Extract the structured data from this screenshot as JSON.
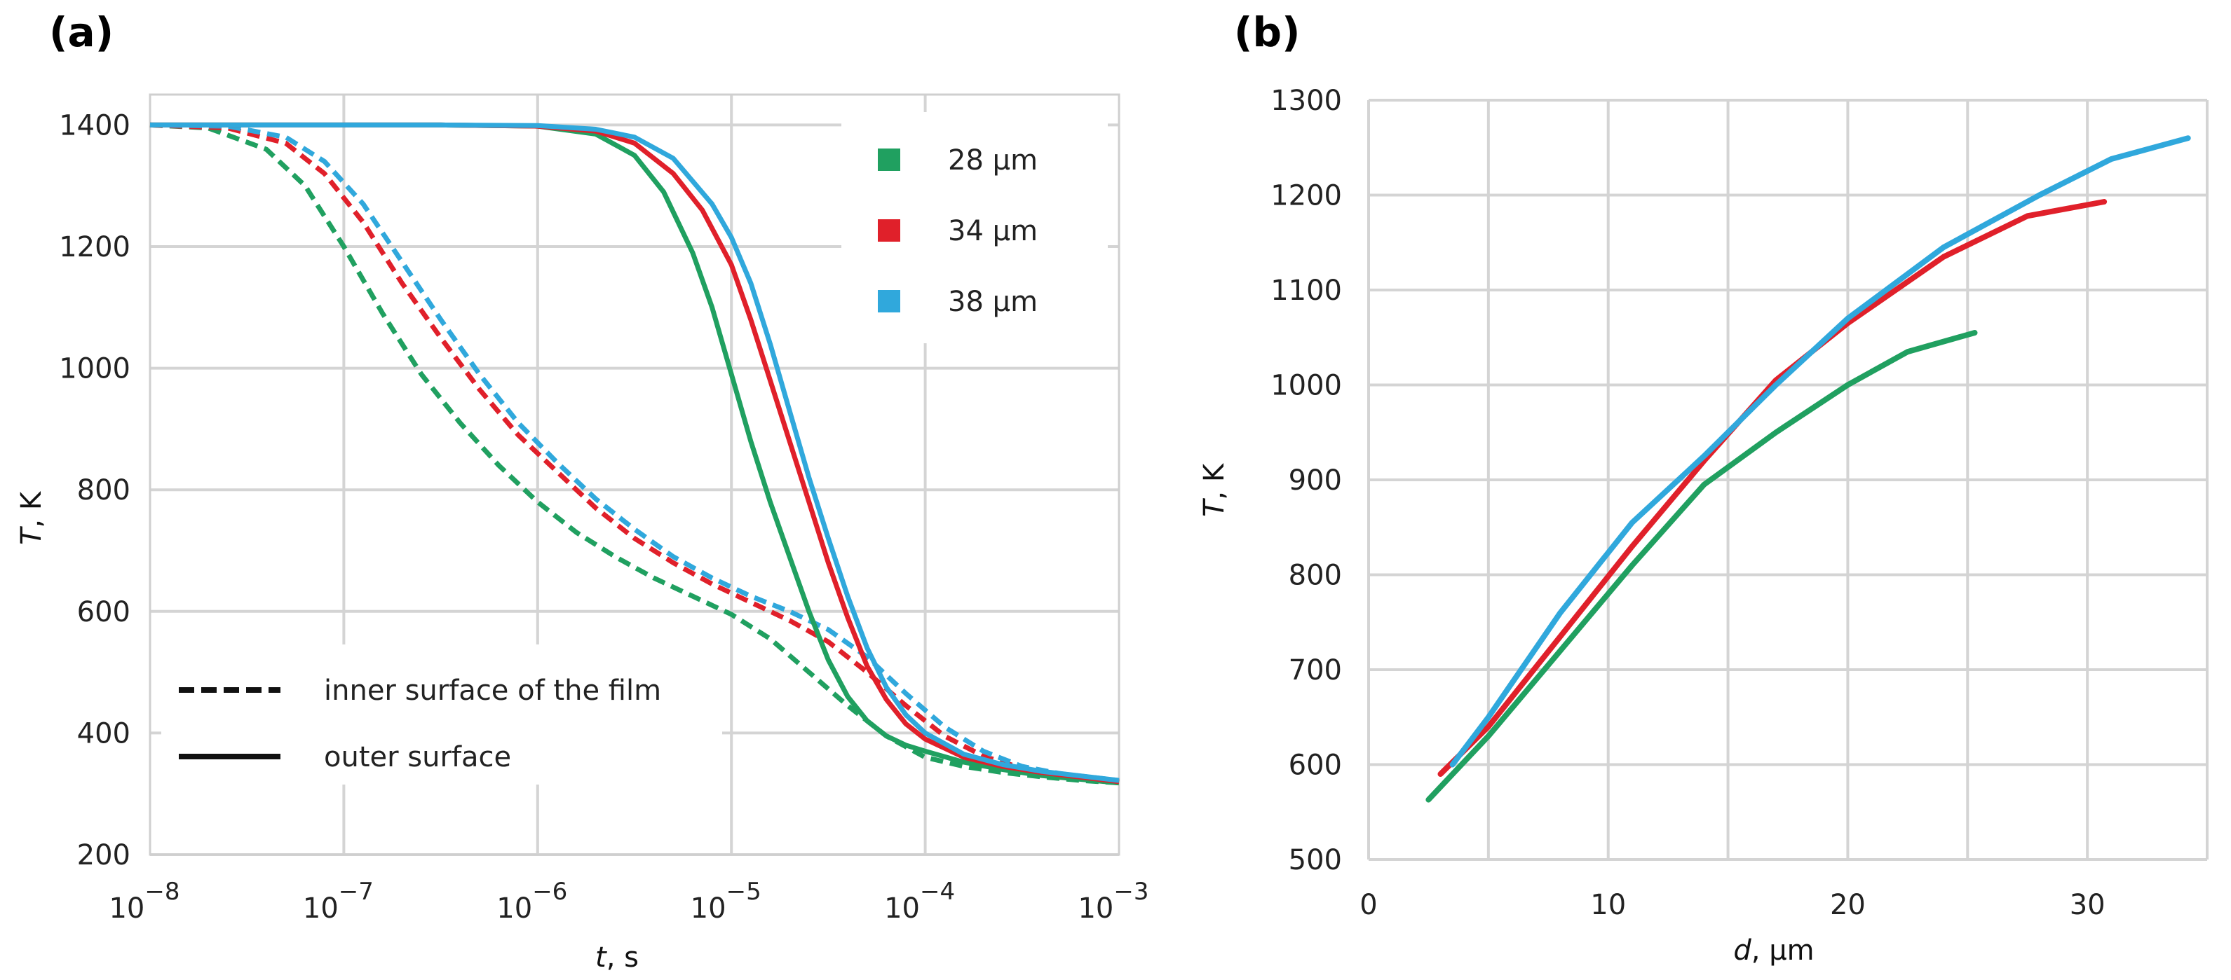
{
  "colors": {
    "green": "#20a060",
    "red": "#e0202a",
    "blue": "#30a8dc"
  },
  "chart_data": [
    {
      "panel": "(a)",
      "type": "line",
      "xscale": "log",
      "xlabel_italic": "t",
      "xlabel_rest": ", s",
      "ylabel_italic": "T",
      "ylabel_rest": ", K",
      "xlim_exp": [
        -8,
        -3
      ],
      "ylim": [
        200,
        1450
      ],
      "xtick_exps": [
        "−8",
        "−7",
        "−6",
        "−5",
        "−4",
        "−3"
      ],
      "ytick_labels": [
        "200",
        "400",
        "600",
        "800",
        "1000",
        "1200",
        "1400"
      ],
      "ytick_values": [
        200,
        400,
        600,
        800,
        1000,
        1200,
        1400
      ],
      "legend": [
        {
          "label": "28 μm",
          "color": "green"
        },
        {
          "label": "34 μm",
          "color": "red"
        },
        {
          "label": "38 μm",
          "color": "blue"
        }
      ],
      "style_legend": [
        {
          "label": "inner surface of the film",
          "style": "dashed"
        },
        {
          "label": "outer surface",
          "style": "solid"
        }
      ],
      "series": [
        {
          "name": "28 μm inner surface of the film",
          "color": "green",
          "style": "dashed",
          "x_log10": [
            -8.0,
            -7.7,
            -7.4,
            -7.2,
            -7.0,
            -6.8,
            -6.6,
            -6.4,
            -6.2,
            -6.0,
            -5.8,
            -5.6,
            -5.4,
            -5.2,
            -5.0,
            -4.8,
            -4.6,
            -4.4,
            -4.2,
            -4.0,
            -3.8,
            -3.6,
            -3.4,
            -3.2,
            -3.0
          ],
          "y": [
            1400,
            1395,
            1360,
            1300,
            1200,
            1090,
            990,
            910,
            840,
            780,
            730,
            690,
            655,
            625,
            595,
            555,
            500,
            445,
            395,
            360,
            345,
            335,
            328,
            322,
            318
          ]
        },
        {
          "name": "34 μm inner surface of the film",
          "color": "red",
          "style": "dashed",
          "x_log10": [
            -8.0,
            -7.6,
            -7.3,
            -7.1,
            -6.9,
            -6.7,
            -6.5,
            -6.3,
            -6.1,
            -5.9,
            -5.7,
            -5.5,
            -5.3,
            -5.1,
            -4.9,
            -4.7,
            -4.5,
            -4.3,
            -4.1,
            -3.9,
            -3.7,
            -3.5,
            -3.3,
            -3.0
          ],
          "y": [
            1400,
            1395,
            1370,
            1320,
            1240,
            1140,
            1050,
            965,
            890,
            830,
            770,
            720,
            680,
            645,
            615,
            585,
            550,
            500,
            445,
            395,
            362,
            342,
            332,
            320
          ]
        },
        {
          "name": "38 μm inner surface of the film",
          "color": "blue",
          "style": "dashed",
          "x_log10": [
            -8.0,
            -7.6,
            -7.3,
            -7.1,
            -6.9,
            -6.7,
            -6.5,
            -6.3,
            -6.1,
            -5.9,
            -5.7,
            -5.5,
            -5.3,
            -5.1,
            -4.9,
            -4.7,
            -4.5,
            -4.3,
            -4.1,
            -3.9,
            -3.7,
            -3.5,
            -3.3,
            -3.0
          ],
          "y": [
            1400,
            1398,
            1380,
            1340,
            1270,
            1175,
            1080,
            990,
            910,
            845,
            785,
            735,
            690,
            655,
            625,
            600,
            570,
            525,
            465,
            410,
            370,
            345,
            333,
            322
          ]
        },
        {
          "name": "28 μm outer surface",
          "color": "green",
          "style": "solid",
          "x_log10": [
            -8.0,
            -6.5,
            -6.0,
            -5.7,
            -5.5,
            -5.35,
            -5.2,
            -5.1,
            -5.0,
            -4.9,
            -4.8,
            -4.7,
            -4.6,
            -4.5,
            -4.4,
            -4.3,
            -4.2,
            -4.1,
            -4.0,
            -3.8,
            -3.6,
            -3.4,
            -3.0
          ],
          "y": [
            1400,
            1400,
            1398,
            1385,
            1350,
            1290,
            1190,
            1100,
            990,
            880,
            780,
            690,
            600,
            520,
            460,
            420,
            395,
            380,
            370,
            352,
            340,
            330,
            318
          ]
        },
        {
          "name": "34 μm outer surface",
          "color": "red",
          "style": "solid",
          "x_log10": [
            -8.0,
            -6.5,
            -6.0,
            -5.7,
            -5.5,
            -5.3,
            -5.15,
            -5.0,
            -4.9,
            -4.8,
            -4.7,
            -4.6,
            -4.5,
            -4.4,
            -4.3,
            -4.2,
            -4.1,
            -4.0,
            -3.8,
            -3.6,
            -3.4,
            -3.0
          ],
          "y": [
            1400,
            1400,
            1398,
            1390,
            1370,
            1320,
            1260,
            1170,
            1080,
            980,
            880,
            780,
            680,
            590,
            510,
            455,
            415,
            390,
            360,
            345,
            335,
            320
          ]
        },
        {
          "name": "38 μm outer surface",
          "color": "blue",
          "style": "solid",
          "x_log10": [
            -8.0,
            -6.5,
            -6.0,
            -5.7,
            -5.5,
            -5.3,
            -5.1,
            -5.0,
            -4.9,
            -4.8,
            -4.7,
            -4.6,
            -4.5,
            -4.4,
            -4.3,
            -4.2,
            -4.1,
            -4.0,
            -3.8,
            -3.6,
            -3.4,
            -3.0
          ],
          "y": [
            1400,
            1400,
            1399,
            1393,
            1380,
            1345,
            1270,
            1215,
            1140,
            1040,
            930,
            820,
            720,
            625,
            540,
            475,
            430,
            400,
            365,
            348,
            337,
            322
          ]
        }
      ]
    },
    {
      "panel": "(b)",
      "type": "line",
      "xlabel_italic": "d",
      "xlabel_rest": ", μm",
      "ylabel_italic": "T",
      "ylabel_rest": ", K",
      "xlim": [
        0,
        35
      ],
      "ylim": [
        500,
        1300
      ],
      "xtick_values": [
        0,
        10,
        20,
        30
      ],
      "xtick_labels": [
        "0",
        "10",
        "20",
        "30"
      ],
      "ytick_values": [
        500,
        600,
        700,
        800,
        900,
        1000,
        1100,
        1200,
        1300
      ],
      "ytick_labels": [
        "500",
        "600",
        "700",
        "800",
        "900",
        "1000",
        "1100",
        "1200",
        "1300"
      ],
      "series": [
        {
          "name": "28 μm",
          "color": "green",
          "x": [
            2.5,
            5,
            8,
            11,
            14,
            17,
            20,
            22.5,
            25.3
          ],
          "y": [
            563,
            630,
            720,
            810,
            895,
            950,
            1000,
            1035,
            1055
          ]
        },
        {
          "name": "34 μm",
          "color": "red",
          "x": [
            3,
            5,
            8,
            11,
            14,
            17,
            20,
            24,
            27.5,
            30.7
          ],
          "y": [
            590,
            640,
            735,
            830,
            920,
            1005,
            1065,
            1135,
            1178,
            1193
          ]
        },
        {
          "name": "38 μm",
          "color": "blue",
          "x": [
            3.5,
            5,
            8,
            11,
            14,
            17,
            20,
            24,
            28,
            31,
            34.2
          ],
          "y": [
            600,
            650,
            760,
            855,
            925,
            1000,
            1070,
            1145,
            1200,
            1238,
            1260
          ]
        }
      ]
    }
  ]
}
